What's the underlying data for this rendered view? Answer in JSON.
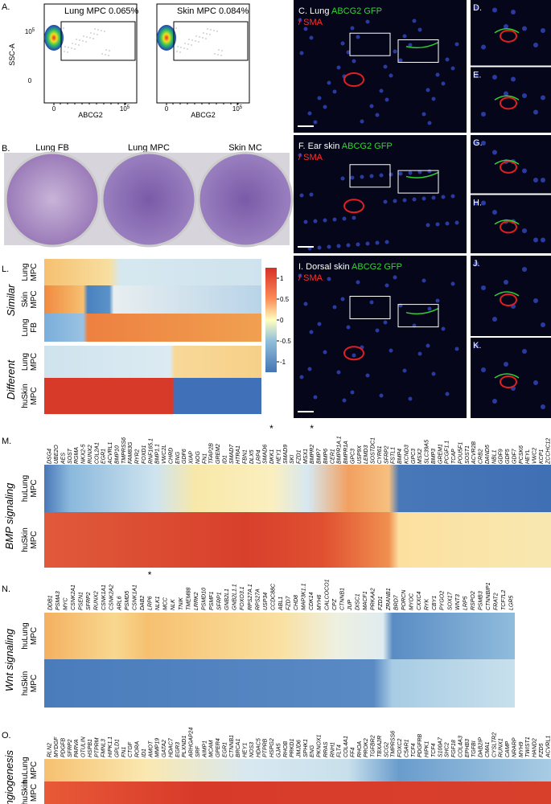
{
  "panels": {
    "A": "A.",
    "B": "B.",
    "L": "L."
  },
  "flow": {
    "y_label": "SSC-A",
    "plots": [
      {
        "gate": "Lung MPC 0.065%",
        "x_label": "ABCG2",
        "y_ticks": [
          {
            "base": "10",
            "exp": "5"
          },
          "0"
        ],
        "x_ticks": [
          "0",
          {
            "base": "10",
            "exp": "5"
          }
        ]
      },
      {
        "gate": "Skin MPC 0.084%",
        "x_label": "ABCG2",
        "x_ticks": [
          "0",
          {
            "base": "10",
            "exp": "5"
          }
        ]
      }
    ]
  },
  "dishes": [
    "Lung FB",
    "Lung MPC",
    "Skin MC"
  ],
  "micro": [
    {
      "caption": [
        {
          "text": "C. Lung ",
          "color": "#ffffff"
        },
        {
          "text": "ABCG2 GFP",
          "color": "#35d535"
        },
        {
          "text": "/ SMA",
          "color": "#ff3030"
        }
      ],
      "insets": [
        "D.",
        "E."
      ]
    },
    {
      "caption": [
        {
          "text": "F. Ear skin ",
          "color": "#ffffff"
        },
        {
          "text": "ABCG2 GFP",
          "color": "#35d535"
        },
        {
          "text": "/ SMA",
          "color": "#ff3030"
        }
      ],
      "insets": [
        "G.",
        "H."
      ]
    },
    {
      "caption": [
        {
          "text": "I. Dorsal skin ",
          "color": "#ffffff"
        },
        {
          "text": "ABCG2 GFP",
          "color": "#35d535"
        },
        {
          "text": "/ SMA",
          "color": "#ff3030"
        }
      ],
      "insets": [
        "J.",
        "K."
      ]
    }
  ],
  "heatmap_L": {
    "groups": [
      {
        "label": "Similar",
        "rows": [
          [
            "Lung",
            "MPC"
          ],
          [
            "Skin",
            "MPC"
          ],
          [
            "Lung",
            "FB"
          ]
        ]
      },
      {
        "label": "Different",
        "rows": [
          [
            "Lung",
            "MPC"
          ],
          [
            "huSkin",
            "MPC"
          ]
        ]
      }
    ],
    "colorbar": [
      1,
      0.5,
      0,
      -0.5,
      -1
    ]
  },
  "sections": [
    {
      "label": "M.",
      "title": "BMP signaling",
      "rows": [
        [
          "huLung",
          "MPC"
        ],
        [
          "huSkin",
          "MPC"
        ]
      ],
      "genes": [
        "DSG4",
        "UBE2O",
        "AES",
        "SOST",
        "RGMA",
        "NKX2-5",
        "RUNX2",
        "COL2A1",
        "EGR1",
        "ACVRL1",
        "BMP10",
        "TMPRSS6",
        "FAM83G",
        "RYR2",
        "FOXD1",
        "RNF165.1",
        "BMP1.1",
        "VWC2L",
        "CHRD",
        "ENG",
        "GDF6",
        "XIAP",
        "NOG",
        "FN1",
        "TFAP2B",
        "GREM2",
        "ID1",
        "SMAD7",
        "HTRA1",
        "FBN1",
        "DLX5",
        "LRP4",
        "SMAD6",
        {
          "name": "DKK1",
          "mark": "*"
        },
        "HEY1",
        "SMAD9",
        "SKI",
        "FZD1",
        "MSX1",
        {
          "name": "BMPR2",
          "mark": "*"
        },
        "BMP7",
        "BMP6",
        "CER1",
        "BMPR1A.1",
        "BMPR1A",
        "GPC3",
        "USP9X",
        "LEMD3",
        "SOSTDC1",
        "CYR61",
        "SFRP2",
        "FSTL1",
        "BMP4",
        "KCND3",
        "GPC3",
        "MSX2",
        "SLC39A5",
        "BMP3",
        "GREM1",
        "PCGF1.1",
        "TCAP",
        "POU5F1",
        "SOST1",
        "ACVR2B",
        "CRB2",
        "DAND5",
        "NBL1",
        "GDF9",
        "GDF5",
        "GDF7",
        "PCSK6",
        "HEYL",
        "VWC2",
        "KCP1",
        "ZCCHC12"
      ]
    },
    {
      "label": "N.",
      "title": "Wnt signaling",
      "rows": [
        [
          "huLung",
          "MPC"
        ],
        [
          "huSkin",
          "MPC"
        ]
      ],
      "genes": [
        "DDB1",
        "PSMA3",
        "MYC",
        "CSNK2A1",
        "PSEN1",
        "SFRP2",
        "RUNX2",
        "CSNK1A1",
        "CSNK2A2",
        "ARL6",
        "PSMD5",
        "CSNK1A1",
        "DAB2",
        {
          "name": "LRP6",
          "mark": "*"
        },
        "NLK1",
        "MCC",
        "NLK",
        "TNIK",
        "TMEM88",
        "LRRK2",
        "PSMD10",
        "PSMF1",
        "SFRP1",
        "GNB2L1",
        "GNB2L1.1",
        "FOXO3.1",
        "RPS27A.1",
        "RPS27A",
        "USP34",
        "CCDC88C",
        "ABL1",
        "FZD7",
        "CHD8",
        "MAP3K1.1",
        "CDK14",
        "MYH6",
        "CALCOCO1",
        "CPZ",
        "CTNNB1",
        "JUP",
        "DISC1",
        "MACF1",
        "PRKAA2",
        "FZD1",
        "ZRANB1",
        "BRD7",
        "PORCN",
        "MYOC",
        "CXXC4",
        "RYK",
        "CBY1",
        "PYGO2",
        "SOX17",
        "WNT3",
        "LRP5",
        "RSPO2",
        "PSMB3",
        "CTNNBIP1",
        "FRAT2",
        "TCF7L2",
        "LGR5"
      ]
    },
    {
      "label": "O.",
      "title": "Angiogenesis",
      "rows": [
        [
          "huLung",
          "MPC"
        ],
        [
          "huSkin",
          "MPC"
        ]
      ],
      "genes": [
        "RLN2",
        "MYDGF",
        "PDGFB",
        "SFRP2",
        "PARVA",
        "OTULIN",
        "HSPB1",
        "PTPRM",
        "FMNL3",
        "HIPK1.1",
        "GPLD1",
        "FN1",
        "CTGF",
        "RORA",
        "ID1",
        "AMOT",
        "MMP19",
        "GATA2",
        "HDAC7",
        "EGR3",
        "PLXND1",
        "ARHGAP24",
        "SRF",
        "AIMP1",
        "MCAM",
        "GPER4",
        "EGR1",
        "CTNNB1",
        "BRCA1",
        "HEY1",
        "NOS3",
        "HDAC5",
        "PTPRB",
        "HSPG2",
        "GJA5",
        "RHOB",
        "PRKD1",
        "JMJD6",
        "SPHK1",
        "ENG",
        "PKNOX1",
        "RRAS",
        "RNH1",
        "FLT4",
        "COL4A1",
        "FF4",
        "RHOA",
        "PROK2",
        "TGFBR2",
        "TBXA2R",
        "SCG2",
        "TMPRSS6",
        "FOXC2",
        "C5AR1",
        "TCF4",
        "PDGFRB",
        "HIPK1",
        "TCF4",
        "S100A7",
        "SHC2",
        "FGF18",
        "COL4A3",
        "EPHB3",
        "TGFBI",
        "DAB2IP",
        "CMA1",
        "CYSLTR2",
        "RUNX1",
        "CAMP",
        "NRARP",
        "MYH9",
        "TWIST1",
        "HAND2",
        "FZD5",
        "ACVRL1"
      ]
    }
  ]
}
